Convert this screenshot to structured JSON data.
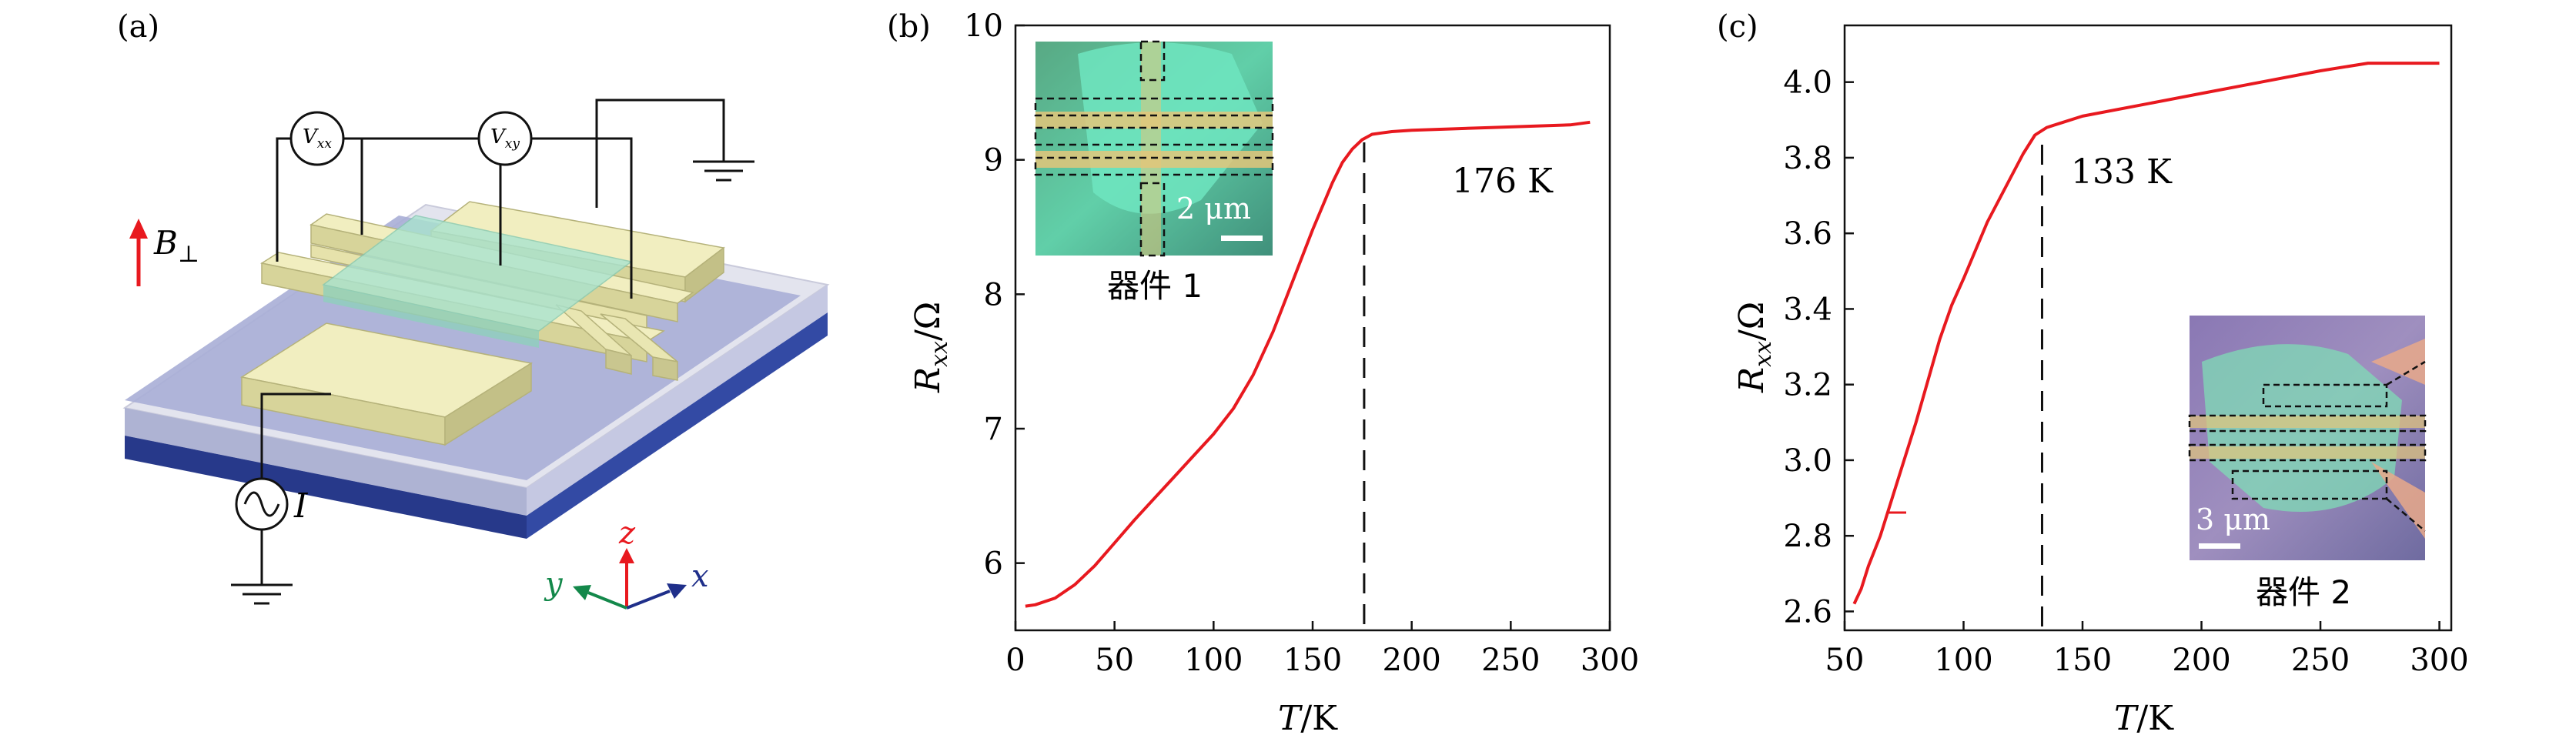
{
  "panels": {
    "a": {
      "label": "(a)",
      "field_symbol": "B",
      "field_subscript": "⊥",
      "meter_xx": "V",
      "meter_xx_sub": "xx",
      "meter_xy": "V",
      "meter_xy_sub": "xy",
      "source_label": "I",
      "axis_x": "x",
      "axis_y": "y",
      "axis_z": "z"
    },
    "b": {
      "label": "(b)",
      "annotation": "176 K",
      "inset_scale": "2 μm",
      "inset_caption": "器件 1"
    },
    "c": {
      "label": "(c)",
      "annotation": "133 K",
      "inset_scale": "3 μm",
      "inset_caption": "器件 2"
    }
  },
  "colors": {
    "curve": "#e8191f",
    "substrate_top": "#aab0d6",
    "substrate_side": "#283c8e",
    "electrode": "#eeebb5",
    "channel": "#a9e3cf"
  },
  "chart_data": [
    {
      "type": "line",
      "panel": "b",
      "xlabel": "T/K",
      "ylabel": "R_xx/Ω",
      "xlim": [
        0,
        300
      ],
      "ylim": [
        5.5,
        10
      ],
      "xticks": [
        0,
        50,
        100,
        150,
        200,
        250,
        300
      ],
      "yticks": [
        6,
        7,
        8,
        9,
        10
      ],
      "grid": false,
      "x": [
        5,
        10,
        20,
        30,
        40,
        50,
        60,
        70,
        80,
        90,
        100,
        110,
        120,
        130,
        140,
        150,
        160,
        165,
        170,
        175,
        180,
        185,
        190,
        200,
        220,
        240,
        260,
        280,
        290
      ],
      "y": [
        5.68,
        5.69,
        5.74,
        5.84,
        5.98,
        6.15,
        6.32,
        6.48,
        6.64,
        6.8,
        6.96,
        7.15,
        7.4,
        7.72,
        8.1,
        8.48,
        8.83,
        8.98,
        9.08,
        9.15,
        9.19,
        9.2,
        9.21,
        9.22,
        9.23,
        9.24,
        9.25,
        9.26,
        9.28
      ],
      "marker_x": 176,
      "annotation": "176 K"
    },
    {
      "type": "line",
      "panel": "c",
      "xlabel": "T/K",
      "ylabel": "R_xx/Ω",
      "xlim": [
        50,
        305
      ],
      "ylim": [
        2.55,
        4.15
      ],
      "xticks": [
        50,
        100,
        150,
        200,
        250,
        300
      ],
      "yticks": [
        2.6,
        2.8,
        3.0,
        3.2,
        3.4,
        3.6,
        3.8,
        4.0
      ],
      "grid": false,
      "x": [
        54,
        57,
        60,
        65,
        70,
        80,
        90,
        95,
        100,
        110,
        120,
        125,
        130,
        135,
        140,
        150,
        175,
        200,
        225,
        250,
        270,
        280,
        290,
        300
      ],
      "y": [
        2.62,
        2.66,
        2.72,
        2.8,
        2.9,
        3.1,
        3.32,
        3.41,
        3.48,
        3.63,
        3.75,
        3.81,
        3.86,
        3.88,
        3.89,
        3.91,
        3.94,
        3.97,
        4.0,
        4.03,
        4.05,
        4.05,
        4.05,
        4.05
      ],
      "marker_x": 133,
      "annotation": "133 K"
    }
  ]
}
